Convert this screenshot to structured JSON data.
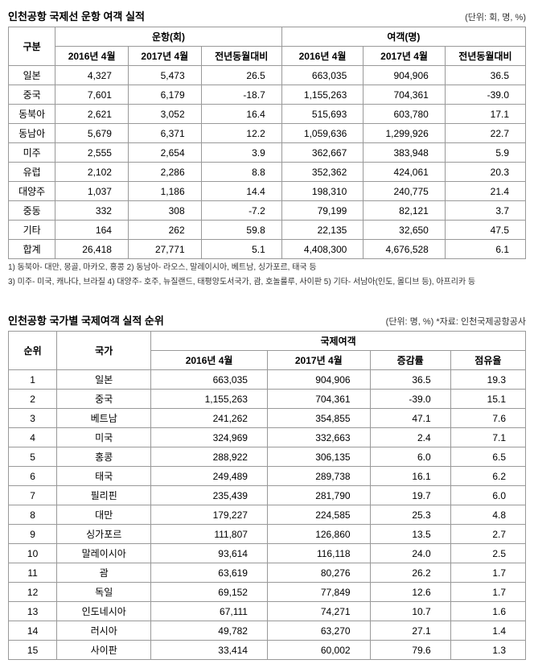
{
  "table1": {
    "title": "인천공항 국제선 운항 여객 실적",
    "unit": "(단위: 회, 명, %)",
    "header_group": "구분",
    "group1": "운항(회)",
    "group2": "여객(명)",
    "cols": [
      "2016년 4월",
      "2017년 4월",
      "전년동월대비",
      "2016년 4월",
      "2017년 4월",
      "전년동월대비"
    ],
    "rows": [
      {
        "label": "일본",
        "v": [
          "4,327",
          "5,473",
          "26.5",
          "663,035",
          "904,906",
          "36.5"
        ]
      },
      {
        "label": "중국",
        "v": [
          "7,601",
          "6,179",
          "-18.7",
          "1,155,263",
          "704,361",
          "-39.0"
        ]
      },
      {
        "label": "동북아",
        "v": [
          "2,621",
          "3,052",
          "16.4",
          "515,693",
          "603,780",
          "17.1"
        ]
      },
      {
        "label": "동남아",
        "v": [
          "5,679",
          "6,371",
          "12.2",
          "1,059,636",
          "1,299,926",
          "22.7"
        ]
      },
      {
        "label": "미주",
        "v": [
          "2,555",
          "2,654",
          "3.9",
          "362,667",
          "383,948",
          "5.9"
        ]
      },
      {
        "label": "유럽",
        "v": [
          "2,102",
          "2,286",
          "8.8",
          "352,362",
          "424,061",
          "20.3"
        ]
      },
      {
        "label": "대양주",
        "v": [
          "1,037",
          "1,186",
          "14.4",
          "198,310",
          "240,775",
          "21.4"
        ]
      },
      {
        "label": "중동",
        "v": [
          "332",
          "308",
          "-7.2",
          "79,199",
          "82,121",
          "3.7"
        ]
      },
      {
        "label": "기타",
        "v": [
          "164",
          "262",
          "59.8",
          "22,135",
          "32,650",
          "47.5"
        ]
      },
      {
        "label": "합계",
        "v": [
          "26,418",
          "27,771",
          "5.1",
          "4,408,300",
          "4,676,528",
          "6.1"
        ]
      }
    ],
    "footnote1": "1) 동북아- 대만, 몽골, 마카오, 홍콩  2) 동남아- 라오스, 말레이시아, 베트남, 싱가포르, 태국 등",
    "footnote2": "3) 미주- 미국, 캐나다, 브라질  4) 대양주- 호주, 뉴질랜드, 태평양도서국가, 괌, 호놀룰루, 사이판  5) 기타- 서남아(인도, 몰디브 등), 아프리카 등"
  },
  "table2": {
    "title": "인천공항 국가별 국제여객 실적 순위",
    "unit": "(단위: 명, %) *자료: 인천국제공항공사",
    "header_rank": "순위",
    "header_country": "국가",
    "header_group": "국제여객",
    "cols": [
      "2016년 4월",
      "2017년 4월",
      "증감률",
      "점유율"
    ],
    "rows": [
      {
        "rank": "1",
        "country": "일본",
        "v": [
          "663,035",
          "904,906",
          "36.5",
          "19.3"
        ]
      },
      {
        "rank": "2",
        "country": "중국",
        "v": [
          "1,155,263",
          "704,361",
          "-39.0",
          "15.1"
        ]
      },
      {
        "rank": "3",
        "country": "베트남",
        "v": [
          "241,262",
          "354,855",
          "47.1",
          "7.6"
        ]
      },
      {
        "rank": "4",
        "country": "미국",
        "v": [
          "324,969",
          "332,663",
          "2.4",
          "7.1"
        ]
      },
      {
        "rank": "5",
        "country": "홍콩",
        "v": [
          "288,922",
          "306,135",
          "6.0",
          "6.5"
        ]
      },
      {
        "rank": "6",
        "country": "태국",
        "v": [
          "249,489",
          "289,738",
          "16.1",
          "6.2"
        ]
      },
      {
        "rank": "7",
        "country": "필리핀",
        "v": [
          "235,439",
          "281,790",
          "19.7",
          "6.0"
        ]
      },
      {
        "rank": "8",
        "country": "대만",
        "v": [
          "179,227",
          "224,585",
          "25.3",
          "4.8"
        ]
      },
      {
        "rank": "9",
        "country": "싱가포르",
        "v": [
          "111,807",
          "126,860",
          "13.5",
          "2.7"
        ]
      },
      {
        "rank": "10",
        "country": "말레이시아",
        "v": [
          "93,614",
          "116,118",
          "24.0",
          "2.5"
        ]
      },
      {
        "rank": "11",
        "country": "괌",
        "v": [
          "63,619",
          "80,276",
          "26.2",
          "1.7"
        ]
      },
      {
        "rank": "12",
        "country": "독일",
        "v": [
          "69,152",
          "77,849",
          "12.6",
          "1.7"
        ]
      },
      {
        "rank": "13",
        "country": "인도네시아",
        "v": [
          "67,111",
          "74,271",
          "10.7",
          "1.6"
        ]
      },
      {
        "rank": "14",
        "country": "러시아",
        "v": [
          "49,782",
          "63,270",
          "27.1",
          "1.4"
        ]
      },
      {
        "rank": "15",
        "country": "사이판",
        "v": [
          "33,414",
          "60,002",
          "79.6",
          "1.3"
        ]
      }
    ]
  },
  "colors": {
    "border": "#999999",
    "text": "#000000",
    "background": "#ffffff"
  }
}
